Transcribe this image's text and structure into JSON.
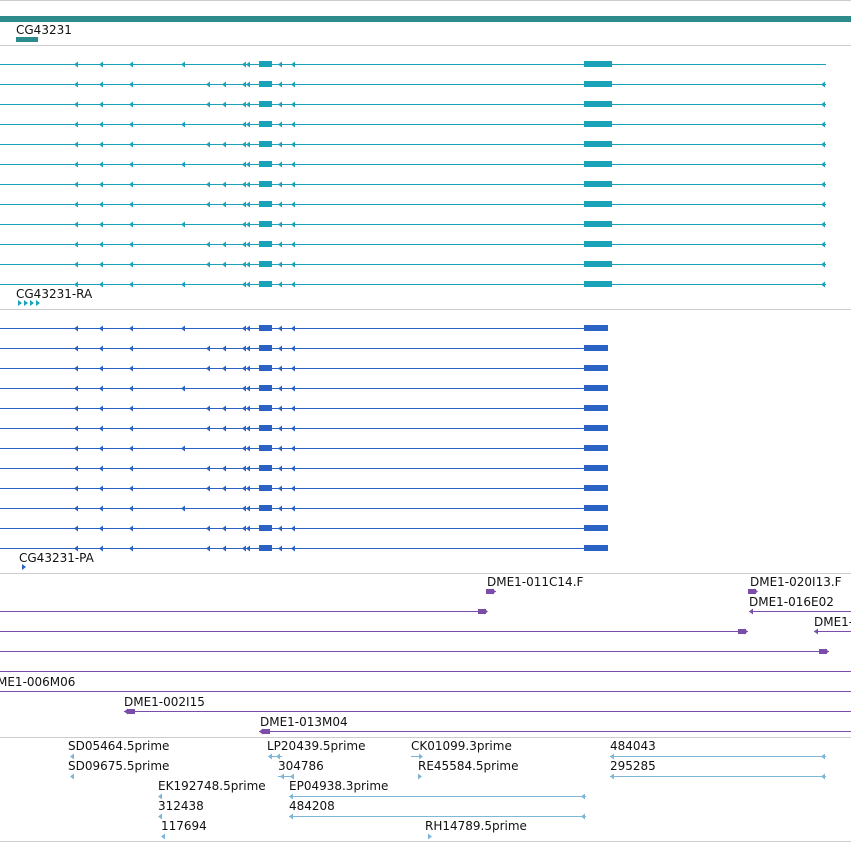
{
  "colors": {
    "gene": "#2e8b8b",
    "mrna": "#1aa3b8",
    "protein": "#2b63c4",
    "clone": "#7a4ea8",
    "est": "#7fb6d8",
    "divider": "#cccccc"
  },
  "icons": {
    "strand_left": "left-triangle-arrow",
    "strand_right": "right-triangle-arrow"
  },
  "tracks": {
    "gene": {
      "name": "CG43231"
    },
    "mrna": {
      "name": "CG43231-RA",
      "row_count": 12
    },
    "protein": {
      "name": "CG43231-PA",
      "row_count": 12
    },
    "clones": [
      "DME1-011C14.F",
      "DME1-020I13.F",
      "DME1-016E02",
      "DME1-",
      "ME1-006M06",
      "DME1-002I15",
      "DME1-013M04"
    ],
    "ests": [
      "SD05464.5prime",
      "LP20439.5prime",
      "CK01099.3prime",
      "484043",
      "SD09675.5prime",
      "304786",
      "RE45584.5prime",
      "295285",
      "EK192748.5prime",
      "EP04938.3prime",
      "312438",
      "484208",
      "117694",
      "RH14789.5prime"
    ]
  }
}
